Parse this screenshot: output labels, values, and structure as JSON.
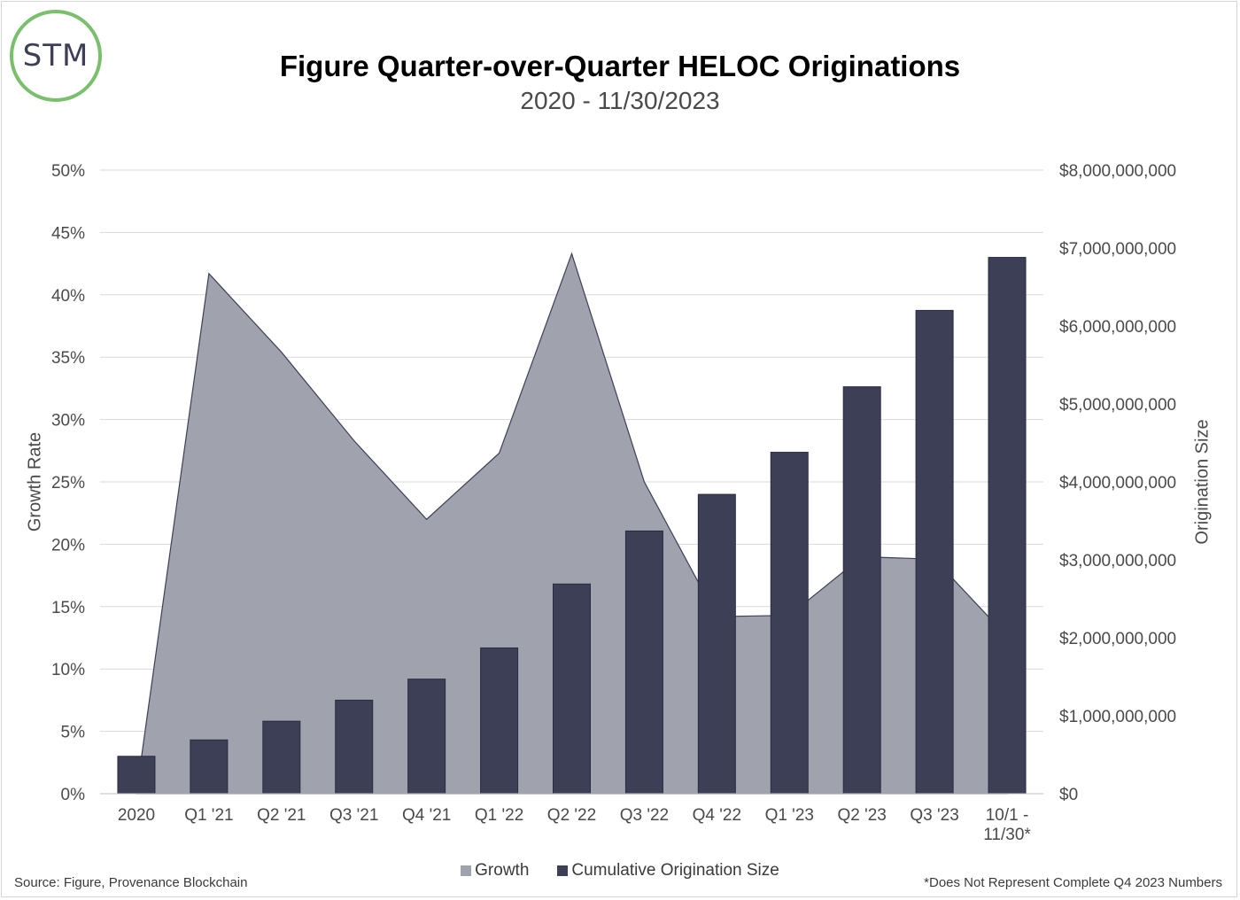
{
  "logo": {
    "text": "STM",
    "ring_color": "#79bf6c"
  },
  "title": "Figure Quarter-over-Quarter HELOC Originations",
  "subtitle": "2020 - 11/30/2023",
  "source": "Source: Figure, Provenance Blockchain",
  "footnote": "*Does Not Represent Complete Q4 2023 Numbers",
  "chart_data": {
    "type": "bar",
    "categories": [
      "2020",
      "Q1 '21",
      "Q2 '21",
      "Q3 '21",
      "Q4 '21",
      "Q1 '22",
      "Q2 '22",
      "Q3 '22",
      "Q4 '22",
      "Q1 '23",
      "Q2 '23",
      "Q3 '23",
      "10/1 - 11/30*"
    ],
    "series": [
      {
        "name": "Growth",
        "type": "area",
        "axis": "left",
        "color": "#a0a2ae",
        "values": [
          0,
          41.7,
          35.4,
          28.3,
          22.0,
          27.3,
          43.3,
          25.0,
          14.2,
          14.3,
          19.0,
          18.8,
          12.6
        ]
      },
      {
        "name": "Cumulative Origination Size",
        "type": "bar",
        "axis": "right",
        "color": "#3d3f57",
        "values": [
          480000000,
          690000000,
          930000000,
          1200000000,
          1470000000,
          1870000000,
          2690000000,
          3370000000,
          3840000000,
          4380000000,
          5220000000,
          6200000000,
          6880000000
        ]
      }
    ],
    "y_left": {
      "label": "Growth Rate",
      "range": [
        0,
        50
      ],
      "ticks": [
        "0%",
        "5%",
        "10%",
        "15%",
        "20%",
        "25%",
        "30%",
        "35%",
        "40%",
        "45%",
        "50%"
      ]
    },
    "y_right": {
      "label": "Origination Size",
      "range": [
        0,
        8000000000
      ],
      "ticks": [
        "$0",
        "$1,000,000,000",
        "$2,000,000,000",
        "$3,000,000,000",
        "$4,000,000,000",
        "$5,000,000,000",
        "$6,000,000,000",
        "$7,000,000,000",
        "$8,000,000,000"
      ]
    },
    "grid": true,
    "legend": "bottom"
  }
}
